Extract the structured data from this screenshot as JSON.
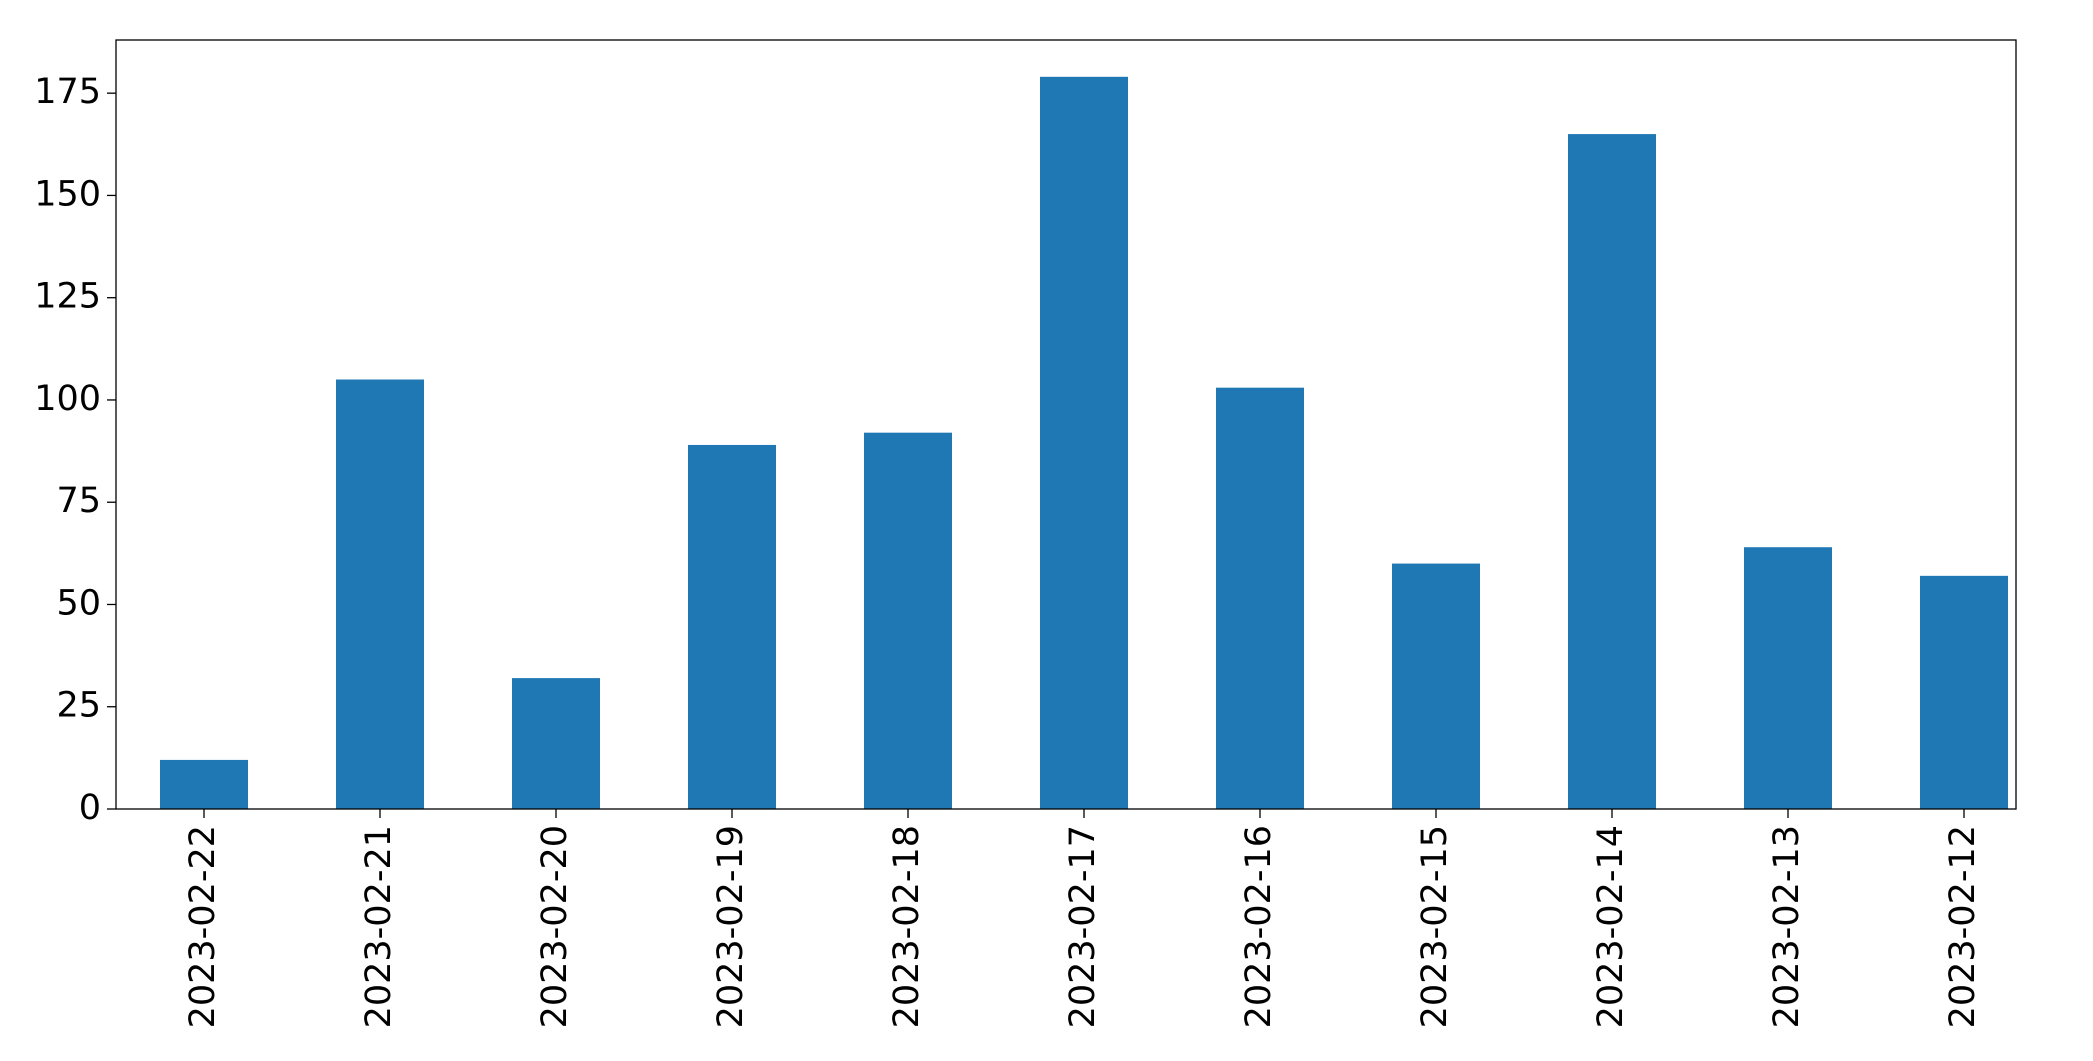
{
  "chart_data": {
    "type": "bar",
    "categories": [
      "2023-02-22",
      "2023-02-21",
      "2023-02-20",
      "2023-02-19",
      "2023-02-18",
      "2023-02-17",
      "2023-02-16",
      "2023-02-15",
      "2023-02-14",
      "2023-02-13",
      "2023-02-12"
    ],
    "values": [
      12,
      105,
      32,
      89,
      92,
      179,
      103,
      60,
      165,
      64,
      57
    ],
    "color": "#1f77b4",
    "ylim": [
      0,
      188
    ],
    "yticks": [
      0,
      25,
      50,
      75,
      100,
      125,
      150,
      175
    ],
    "grid": false
  }
}
